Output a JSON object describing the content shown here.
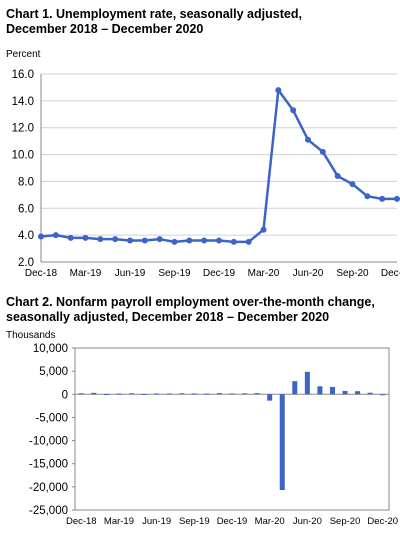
{
  "chart_data": [
    {
      "type": "line",
      "title_line1": "Chart 1. Unemployment rate, seasonally adjusted,",
      "title_line2": "December 2018 – December 2020",
      "ylabel": "Percent",
      "xlabel": "",
      "ylim": [
        2.0,
        16.0
      ],
      "yticks": [
        "2.0",
        "4.0",
        "6.0",
        "8.0",
        "10.0",
        "12.0",
        "14.0",
        "16.0"
      ],
      "xtick_labels": [
        "Dec-18",
        "Mar-19",
        "Jun-19",
        "Sep-19",
        "Dec-19",
        "Mar-20",
        "Jun-20",
        "Sep-20",
        "Dec-20"
      ],
      "x": [
        "Dec-18",
        "Jan-19",
        "Feb-19",
        "Mar-19",
        "Apr-19",
        "May-19",
        "Jun-19",
        "Jul-19",
        "Aug-19",
        "Sep-19",
        "Oct-19",
        "Nov-19",
        "Dec-19",
        "Jan-20",
        "Feb-20",
        "Mar-20",
        "Apr-20",
        "May-20",
        "Jun-20",
        "Jul-20",
        "Aug-20",
        "Sep-20",
        "Oct-20",
        "Nov-20",
        "Dec-20"
      ],
      "series": [
        {
          "values": [
            3.9,
            4.0,
            3.8,
            3.8,
            3.7,
            3.7,
            3.6,
            3.6,
            3.7,
            3.5,
            3.6,
            3.6,
            3.6,
            3.5,
            3.5,
            4.4,
            14.8,
            13.3,
            11.1,
            10.2,
            8.4,
            7.8,
            6.9,
            6.7,
            6.7
          ]
        }
      ],
      "grid": "horizontal",
      "line_color": "#3c64c8",
      "marker": "circle"
    },
    {
      "type": "bar",
      "title_line1": "Chart 2. Nonfarm payroll employment over-the-month change,",
      "title_line2": "seasonally adjusted, December 2018 – December 2020",
      "ylabel": "Thousands",
      "xlabel": "",
      "ylim": [
        -25000,
        10000
      ],
      "yticks": [
        "10,000",
        "5,000",
        "0",
        "-5,000",
        "-10,000",
        "-15,000",
        "-20,000",
        "-25,000"
      ],
      "xtick_labels": [
        "Dec-18",
        "Mar-19",
        "Jun-19",
        "Sep-19",
        "Dec-19",
        "Mar-20",
        "Jun-20",
        "Sep-20",
        "Dec-20"
      ],
      "x": [
        "Dec-18",
        "Jan-19",
        "Feb-19",
        "Mar-19",
        "Apr-19",
        "May-19",
        "Jun-19",
        "Jul-19",
        "Aug-19",
        "Sep-19",
        "Oct-19",
        "Nov-19",
        "Dec-19",
        "Jan-20",
        "Feb-20",
        "Mar-20",
        "Apr-20",
        "May-20",
        "Jun-20",
        "Jul-20",
        "Aug-20",
        "Sep-20",
        "Oct-20",
        "Nov-20",
        "Dec-20"
      ],
      "values": [
        227,
        312,
        56,
        153,
        216,
        62,
        178,
        166,
        219,
        180,
        156,
        261,
        184,
        214,
        251,
        -1373,
        -20679,
        2833,
        4846,
        1726,
        1583,
        716,
        680,
        336,
        -140
      ],
      "grid": "none",
      "bar_color": "#3c64c8"
    }
  ]
}
